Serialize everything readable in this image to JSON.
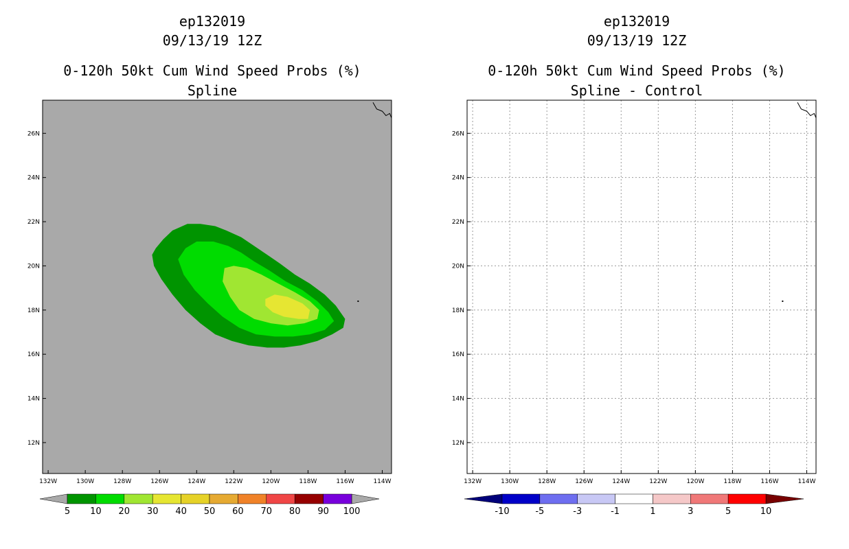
{
  "chart_data": [
    {
      "type": "heatmap",
      "title_lines": [
        "ep132019",
        "09/13/19 12Z",
        "0-120h 50kt Cum Wind Speed Probs (%)",
        "Spline"
      ],
      "x_tick_labels": [
        "132W",
        "130W",
        "128W",
        "126W",
        "124W",
        "122W",
        "120W",
        "118W",
        "116W",
        "114W"
      ],
      "x_tick_values": [
        -132,
        -130,
        -128,
        -126,
        -124,
        -122,
        -120,
        -118,
        -116,
        -114
      ],
      "y_tick_labels": [
        "12N",
        "14N",
        "16N",
        "18N",
        "20N",
        "22N",
        "24N",
        "26N"
      ],
      "y_tick_values": [
        12,
        14,
        16,
        18,
        20,
        22,
        24,
        26
      ],
      "xlim": [
        -132.3,
        -113.5
      ],
      "ylim": [
        10.6,
        27.5
      ],
      "background_color": "#a9a9a9",
      "grid": false,
      "colorbar": {
        "labels": [
          "5",
          "10",
          "20",
          "30",
          "40",
          "50",
          "60",
          "70",
          "80",
          "90",
          "100"
        ],
        "colors": [
          "#009400",
          "#00dc00",
          "#a0e632",
          "#e6e632",
          "#e6d228",
          "#e6aa32",
          "#f08228",
          "#f04646",
          "#960000",
          "#7800dc"
        ],
        "end_colors": [
          "#a9a9a9",
          "#a9a9a9"
        ]
      },
      "contours": [
        {
          "level": 5,
          "color": "#009400",
          "points": [
            [
              -126.4,
              20.5
            ],
            [
              -126.2,
              20.8
            ],
            [
              -125.8,
              21.2
            ],
            [
              -125.3,
              21.6
            ],
            [
              -124.5,
              21.9
            ],
            [
              -123.8,
              21.9
            ],
            [
              -123.0,
              21.8
            ],
            [
              -122.4,
              21.6
            ],
            [
              -121.6,
              21.3
            ],
            [
              -120.9,
              20.9
            ],
            [
              -120.2,
              20.5
            ],
            [
              -119.5,
              20.1
            ],
            [
              -118.7,
              19.6
            ],
            [
              -117.9,
              19.2
            ],
            [
              -117.1,
              18.7
            ],
            [
              -116.5,
              18.2
            ],
            [
              -116.0,
              17.6
            ],
            [
              -116.1,
              17.2
            ],
            [
              -116.7,
              16.9
            ],
            [
              -117.5,
              16.6
            ],
            [
              -118.4,
              16.4
            ],
            [
              -119.3,
              16.3
            ],
            [
              -120.2,
              16.3
            ],
            [
              -121.2,
              16.4
            ],
            [
              -122.1,
              16.6
            ],
            [
              -123.0,
              16.9
            ],
            [
              -123.8,
              17.4
            ],
            [
              -124.6,
              18.0
            ],
            [
              -125.3,
              18.7
            ],
            [
              -125.9,
              19.4
            ],
            [
              -126.3,
              20.0
            ]
          ]
        },
        {
          "level": 10,
          "color": "#00dc00",
          "points": [
            [
              -125.0,
              20.3
            ],
            [
              -124.6,
              20.8
            ],
            [
              -124.0,
              21.1
            ],
            [
              -123.1,
              21.1
            ],
            [
              -122.3,
              20.9
            ],
            [
              -121.6,
              20.6
            ],
            [
              -120.9,
              20.2
            ],
            [
              -120.1,
              19.8
            ],
            [
              -119.2,
              19.3
            ],
            [
              -118.3,
              18.9
            ],
            [
              -117.5,
              18.4
            ],
            [
              -116.9,
              17.9
            ],
            [
              -116.6,
              17.5
            ],
            [
              -117.1,
              17.1
            ],
            [
              -117.9,
              16.9
            ],
            [
              -118.8,
              16.8
            ],
            [
              -119.8,
              16.8
            ],
            [
              -120.8,
              16.9
            ],
            [
              -121.7,
              17.2
            ],
            [
              -122.6,
              17.7
            ],
            [
              -123.4,
              18.3
            ],
            [
              -124.1,
              18.9
            ],
            [
              -124.7,
              19.6
            ]
          ]
        },
        {
          "level": 20,
          "color": "#a0e632",
          "points": [
            [
              -122.5,
              19.9
            ],
            [
              -122.0,
              20.0
            ],
            [
              -121.3,
              19.9
            ],
            [
              -120.5,
              19.6
            ],
            [
              -119.6,
              19.2
            ],
            [
              -118.7,
              18.8
            ],
            [
              -117.9,
              18.4
            ],
            [
              -117.4,
              18.0
            ],
            [
              -117.5,
              17.6
            ],
            [
              -118.2,
              17.4
            ],
            [
              -119.1,
              17.3
            ],
            [
              -120.0,
              17.4
            ],
            [
              -120.9,
              17.6
            ],
            [
              -121.7,
              18.0
            ],
            [
              -122.2,
              18.6
            ],
            [
              -122.6,
              19.3
            ]
          ]
        },
        {
          "level": 30,
          "color": "#e6e632",
          "points": [
            [
              -120.3,
              18.5
            ],
            [
              -119.8,
              18.7
            ],
            [
              -119.1,
              18.6
            ],
            [
              -118.3,
              18.3
            ],
            [
              -117.9,
              18.0
            ],
            [
              -118.0,
              17.6
            ],
            [
              -118.5,
              17.6
            ],
            [
              -119.3,
              17.7
            ],
            [
              -119.9,
              17.9
            ],
            [
              -120.3,
              18.2
            ]
          ]
        }
      ],
      "markers": [
        {
          "lon": -115.3,
          "lat": 18.4,
          "color": "#000000"
        }
      ],
      "coastline": [
        [
          -114.5,
          27.4
        ],
        [
          -114.3,
          27.1
        ],
        [
          -114.0,
          27.0
        ],
        [
          -113.8,
          26.8
        ],
        [
          -113.6,
          26.9
        ],
        [
          -113.5,
          26.7
        ]
      ]
    },
    {
      "type": "heatmap",
      "title_lines": [
        "ep132019",
        "09/13/19 12Z",
        "0-120h 50kt Cum Wind Speed Probs (%)",
        "Spline - Control"
      ],
      "x_tick_labels": [
        "132W",
        "130W",
        "128W",
        "126W",
        "124W",
        "122W",
        "120W",
        "118W",
        "116W",
        "114W"
      ],
      "x_tick_values": [
        -132,
        -130,
        -128,
        -126,
        -124,
        -122,
        -120,
        -118,
        -116,
        -114
      ],
      "y_tick_labels": [
        "12N",
        "14N",
        "16N",
        "18N",
        "20N",
        "22N",
        "24N",
        "26N"
      ],
      "y_tick_values": [
        12,
        14,
        16,
        18,
        20,
        22,
        24,
        26
      ],
      "xlim": [
        -132.3,
        -113.5
      ],
      "ylim": [
        10.6,
        27.5
      ],
      "background_color": "#ffffff",
      "grid": true,
      "colorbar": {
        "labels": [
          "-10",
          "-5",
          "-3",
          "-1",
          "1",
          "3",
          "5",
          "10"
        ],
        "colors": [
          "#0000c8",
          "#6e6ef0",
          "#c8c8f5",
          "#ffffff",
          "#f5c8c8",
          "#f07878",
          "#ff0000"
        ],
        "end_colors": [
          "#00007a",
          "#780000"
        ]
      },
      "contours": [],
      "markers": [
        {
          "lon": -115.3,
          "lat": 18.4,
          "color": "#000000"
        }
      ],
      "coastline": [
        [
          -114.5,
          27.4
        ],
        [
          -114.3,
          27.1
        ],
        [
          -114.0,
          27.0
        ],
        [
          -113.8,
          26.8
        ],
        [
          -113.6,
          26.9
        ],
        [
          -113.5,
          26.7
        ]
      ]
    }
  ]
}
